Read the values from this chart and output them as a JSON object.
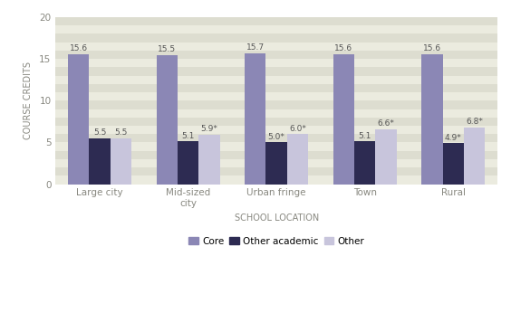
{
  "categories": [
    "Large city",
    "Mid-sized\ncity",
    "Urban fringe",
    "Town",
    "Rural"
  ],
  "core_values": [
    15.6,
    15.5,
    15.7,
    15.6,
    15.6
  ],
  "other_academic_values": [
    5.5,
    5.1,
    5.0,
    5.1,
    4.9
  ],
  "other_values": [
    5.5,
    5.9,
    6.0,
    6.6,
    6.8
  ],
  "core_labels": [
    "15.6",
    "15.5",
    "15.7",
    "15.6",
    "15.6"
  ],
  "other_academic_labels": [
    "5.5",
    "5.1",
    "5.0*",
    "5.1",
    "4.9*"
  ],
  "other_labels": [
    "5.5",
    "5.9*",
    "6.0*",
    "6.6*",
    "6.8*"
  ],
  "core_color": "#8B87B5",
  "other_academic_color": "#2D2B52",
  "other_color": "#C8C5DC",
  "bar_width": 0.24,
  "ylim": [
    0,
    20
  ],
  "yticks": [
    0,
    5,
    10,
    15,
    20
  ],
  "ylabel": "COURSE CREDITS",
  "xlabel": "SCHOOL LOCATION",
  "legend_labels": [
    "Core",
    "Other academic",
    "Other"
  ],
  "stripe_light": "#EBEBDF",
  "stripe_dark": "#DDDDD0",
  "label_fontsize": 6.5,
  "tick_fontsize": 7.5,
  "axis_label_fontsize": 7,
  "axis_label_color": "#888880",
  "tick_color": "#888880"
}
